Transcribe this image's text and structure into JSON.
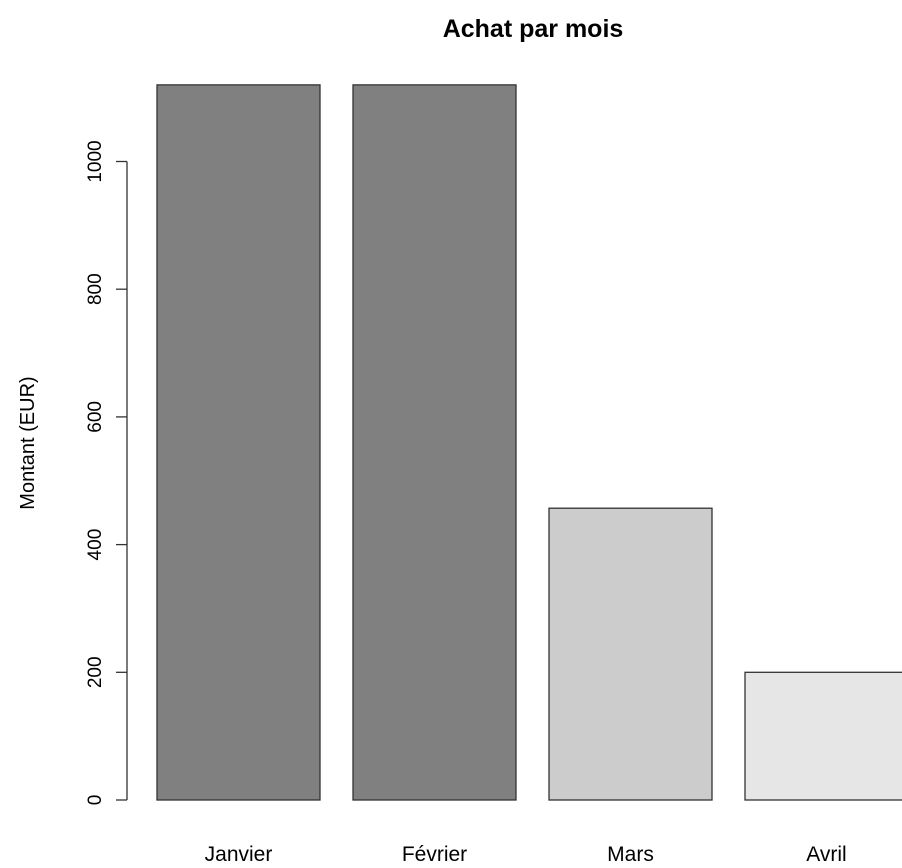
{
  "chart_data": {
    "type": "bar",
    "title": "Achat par mois",
    "xlabel": "",
    "ylabel": "Montant (EUR)",
    "categories": [
      "Janvier",
      "Février",
      "Mars",
      "Avril"
    ],
    "values": [
      1120,
      1120,
      457,
      200
    ],
    "bar_colors": [
      "#808080",
      "#808080",
      "#cccccc",
      "#e6e6e6"
    ],
    "bar_border_color": "#333333",
    "ylim": [
      0,
      1120
    ],
    "yticks": [
      0,
      200,
      400,
      600,
      800,
      1000
    ],
    "ytick_labels": [
      "0",
      "200",
      "400",
      "600",
      "800",
      "1000"
    ],
    "grid": false,
    "legend": "none"
  }
}
